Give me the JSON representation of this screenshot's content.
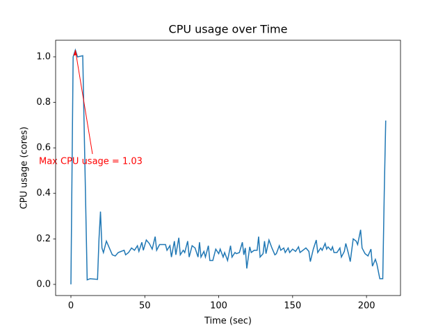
{
  "chart_data": {
    "type": "line",
    "title": "CPU usage over Time",
    "x_label": "Time (sec)",
    "y_label": "CPU usage (cores)",
    "annotation": "Max CPU usage = 1.03",
    "annotation_color": "#ff0000",
    "xlim": [
      -10.35,
      223
    ],
    "ylim": [
      -0.049,
      1.073
    ],
    "xticks": [
      0,
      50,
      100,
      150,
      200
    ],
    "yticks": [
      {
        "value": 0,
        "label": "0.0"
      },
      0.2,
      0.4,
      0.6,
      0.8,
      {
        "value": 1,
        "label": "1.0"
      }
    ],
    "series": [
      {
        "color": "#1f77b4",
        "x": [
          0,
          1.5,
          3,
          4.5,
          8,
          11,
          13,
          18,
          19,
          20,
          21,
          22,
          24,
          26,
          28,
          30,
          32,
          34,
          36,
          37,
          39,
          41,
          43,
          45,
          46,
          48,
          49,
          51,
          53,
          55,
          57,
          58,
          60,
          62,
          64,
          65,
          67,
          68,
          70,
          71,
          73,
          74,
          76,
          77,
          79,
          80,
          82,
          84,
          86,
          87,
          88,
          90,
          91,
          93,
          94,
          96,
          98,
          100,
          101,
          103,
          104,
          106,
          108,
          109,
          111,
          112,
          114,
          116,
          117,
          118,
          119,
          121,
          122,
          124,
          126,
          127,
          128,
          130,
          131,
          132,
          134,
          136,
          138,
          139,
          141,
          142,
          144,
          145,
          147,
          148,
          150,
          152,
          154,
          155,
          157,
          159,
          161,
          162,
          164,
          166,
          167,
          169,
          170,
          172,
          173,
          174,
          176,
          177,
          178,
          180,
          182,
          183,
          185,
          186,
          188,
          189,
          191,
          193,
          194,
          196,
          197,
          199,
          201,
          203,
          204,
          206,
          207,
          209,
          211,
          212,
          213
        ],
        "values": [
          0,
          1.0,
          1.03,
          1.0,
          1.005,
          0.02,
          0.025,
          0.022,
          0.2,
          0.32,
          0.16,
          0.14,
          0.19,
          0.16,
          0.13,
          0.125,
          0.14,
          0.145,
          0.15,
          0.13,
          0.14,
          0.16,
          0.15,
          0.17,
          0.145,
          0.185,
          0.15,
          0.195,
          0.18,
          0.155,
          0.21,
          0.15,
          0.175,
          0.175,
          0.175,
          0.15,
          0.17,
          0.12,
          0.19,
          0.13,
          0.205,
          0.13,
          0.15,
          0.14,
          0.19,
          0.12,
          0.17,
          0.16,
          0.12,
          0.185,
          0.12,
          0.145,
          0.12,
          0.17,
          0.105,
          0.105,
          0.155,
          0.135,
          0.155,
          0.12,
          0.14,
          0.105,
          0.17,
          0.12,
          0.14,
          0.135,
          0.14,
          0.185,
          0.13,
          0.16,
          0.07,
          0.165,
          0.14,
          0.15,
          0.15,
          0.21,
          0.12,
          0.135,
          0.19,
          0.135,
          0.195,
          0.16,
          0.13,
          0.135,
          0.17,
          0.15,
          0.16,
          0.14,
          0.16,
          0.14,
          0.155,
          0.145,
          0.165,
          0.14,
          0.15,
          0.16,
          0.145,
          0.1,
          0.155,
          0.195,
          0.14,
          0.16,
          0.15,
          0.18,
          0.155,
          0.165,
          0.15,
          0.165,
          0.14,
          0.14,
          0.16,
          0.12,
          0.145,
          0.18,
          0.13,
          0.1,
          0.2,
          0.19,
          0.175,
          0.24,
          0.16,
          0.135,
          0.125,
          0.155,
          0.08,
          0.11,
          0.09,
          0.025,
          0.025,
          0.4,
          0.72
        ]
      }
    ]
  }
}
